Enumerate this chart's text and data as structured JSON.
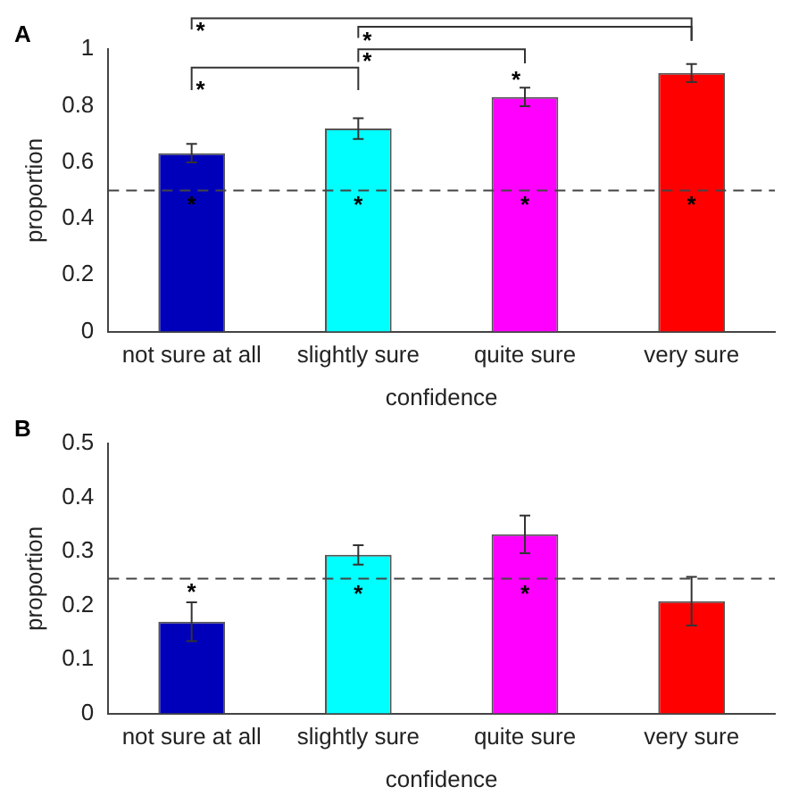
{
  "chart_data": [
    {
      "type": "bar",
      "title": "A",
      "xlabel": "confidence",
      "ylabel": "proportion",
      "categories": [
        "not sure at all",
        "slightly sure",
        "quite sure",
        "very sure"
      ],
      "values": [
        0.632,
        0.719,
        0.831,
        0.916
      ],
      "colors": [
        "#0000bb",
        "#00ffff",
        "#ff00ff",
        "#ff0000"
      ],
      "errors": [
        0.033,
        0.037,
        0.033,
        0.032
      ],
      "ylim": [
        0,
        1
      ],
      "yticks": [
        0,
        0.2,
        0.4,
        0.6,
        0.8,
        1
      ],
      "grid": false,
      "ref_lines": [
        {
          "axis": "y",
          "value": 0.5,
          "color": "#444444",
          "line_style": "dashed"
        }
      ],
      "annotations": [
        "*",
        "*",
        "*",
        "*",
        "*",
        "*",
        "*",
        "*",
        "*"
      ]
    },
    {
      "type": "bar",
      "title": "B",
      "xlabel": "confidence",
      "ylabel": "proportion",
      "categories": [
        "not sure at all",
        "slightly sure",
        "quite sure",
        "very sure"
      ],
      "values": [
        0.17,
        0.294,
        0.332,
        0.208
      ],
      "colors": [
        "#0000bb",
        "#00ffff",
        "#ff00ff",
        "#ff0000"
      ],
      "errors": [
        0.036,
        0.018,
        0.035,
        0.045
      ],
      "ylim": [
        0,
        0.5
      ],
      "yticks": [
        0,
        0.1,
        0.2,
        0.3,
        0.4,
        0.5
      ],
      "grid": false,
      "ref_lines": [
        {
          "axis": "y",
          "value": 0.25,
          "color": "#444444",
          "line_style": "dashed"
        }
      ],
      "annotations": [
        "*",
        "*",
        "*"
      ]
    }
  ]
}
